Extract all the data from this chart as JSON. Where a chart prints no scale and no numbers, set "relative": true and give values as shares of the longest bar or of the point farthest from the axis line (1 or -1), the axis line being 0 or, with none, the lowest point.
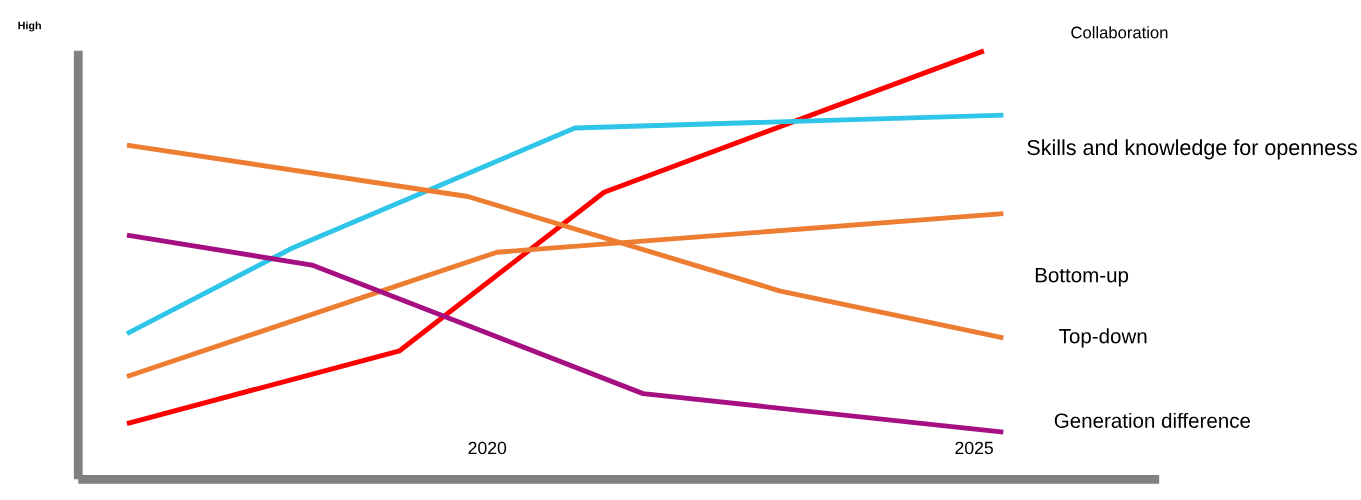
{
  "chart_data": {
    "type": "line",
    "relative": true,
    "ylabel": "High",
    "xlim": [
      2015.8,
      2026.9
    ],
    "xticks": [
      2020,
      2025
    ],
    "grid": false,
    "series": [
      {
        "name": "Collaboration",
        "color": "#ff0000",
        "x": [
          2016.3,
          2019.1,
          2021.2,
          2025.1
        ],
        "values": [
          0.13,
          0.3,
          0.67,
          1.0
        ]
      },
      {
        "name": "Skills and knowledge for openness",
        "color": "#2ec5e8",
        "x": [
          2016.3,
          2018.0,
          2020.9,
          2025.3
        ],
        "values": [
          0.34,
          0.54,
          0.82,
          0.85
        ]
      },
      {
        "name": "Bottom-up",
        "color": "#ed7d31",
        "x": [
          2016.3,
          2020.1,
          2025.3
        ],
        "values": [
          0.24,
          0.53,
          0.62
        ]
      },
      {
        "name": "Top-down",
        "color": "#ed7d31",
        "x": [
          2016.3,
          2019.8,
          2023.0,
          2025.3
        ],
        "values": [
          0.78,
          0.66,
          0.44,
          0.33
        ]
      },
      {
        "name": "Generation difference",
        "color": "#a50f82",
        "x": [
          2016.3,
          2018.2,
          2021.6,
          2025.3
        ],
        "values": [
          0.57,
          0.5,
          0.2,
          0.11
        ]
      }
    ]
  }
}
